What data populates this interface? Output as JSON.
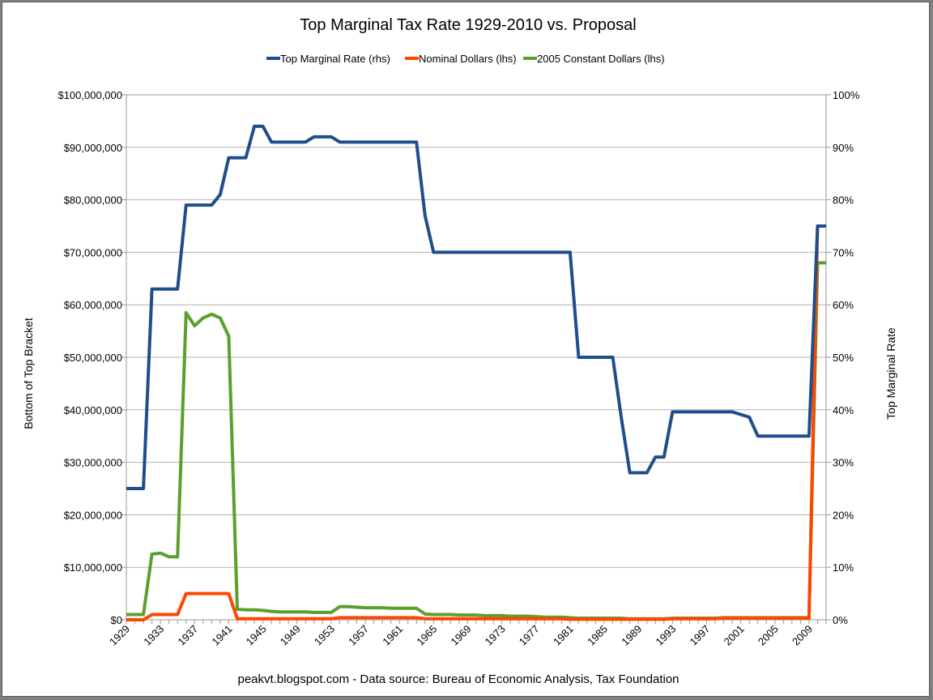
{
  "chart_data": {
    "type": "line",
    "title": "Top Marginal Tax Rate 1929-2010 vs. Proposal",
    "ylabel_left": "Bottom of Top Bracket",
    "ylabel_right": "Top Marginal Rate",
    "source_note": "peakvt.blogspot.com - Data source: Bureau of Economic Analysis, Tax Foundation",
    "legend_position": "top-center",
    "grid": true,
    "xlim": [
      1929,
      2011
    ],
    "ylim_left": [
      0,
      100000000
    ],
    "ylim_right": [
      0,
      100
    ],
    "x_tick_labels": [
      "1929",
      "1933",
      "1937",
      "1941",
      "1945",
      "1949",
      "1953",
      "1957",
      "1961",
      "1965",
      "1969",
      "1973",
      "1977",
      "1981",
      "1985",
      "1989",
      "1993",
      "1997",
      "2001",
      "2005",
      "2009"
    ],
    "y_left_tick_labels": [
      "$0",
      "$10,000,000",
      "$20,000,000",
      "$30,000,000",
      "$40,000,000",
      "$50,000,000",
      "$60,000,000",
      "$70,000,000",
      "$80,000,000",
      "$90,000,000",
      "$100,000,000"
    ],
    "y_right_tick_labels": [
      "0%",
      "10%",
      "20%",
      "30%",
      "40%",
      "50%",
      "60%",
      "70%",
      "80%",
      "90%",
      "100%"
    ],
    "series": [
      {
        "name": "Top Marginal Rate (rhs)",
        "axis": "right",
        "color": "#1f4e8c",
        "points": [
          [
            1929,
            25
          ],
          [
            1930,
            25
          ],
          [
            1931,
            25
          ],
          [
            1932,
            63
          ],
          [
            1933,
            63
          ],
          [
            1934,
            63
          ],
          [
            1935,
            63
          ],
          [
            1936,
            79
          ],
          [
            1937,
            79
          ],
          [
            1938,
            79
          ],
          [
            1939,
            79
          ],
          [
            1940,
            81
          ],
          [
            1941,
            88
          ],
          [
            1942,
            88
          ],
          [
            1943,
            88
          ],
          [
            1944,
            94
          ],
          [
            1945,
            94
          ],
          [
            1946,
            91
          ],
          [
            1947,
            91
          ],
          [
            1948,
            91
          ],
          [
            1949,
            91
          ],
          [
            1950,
            91
          ],
          [
            1951,
            92
          ],
          [
            1952,
            92
          ],
          [
            1953,
            92
          ],
          [
            1954,
            91
          ],
          [
            1955,
            91
          ],
          [
            1956,
            91
          ],
          [
            1957,
            91
          ],
          [
            1958,
            91
          ],
          [
            1959,
            91
          ],
          [
            1960,
            91
          ],
          [
            1961,
            91
          ],
          [
            1962,
            91
          ],
          [
            1963,
            91
          ],
          [
            1964,
            77
          ],
          [
            1965,
            70
          ],
          [
            1966,
            70
          ],
          [
            1967,
            70
          ],
          [
            1968,
            70
          ],
          [
            1969,
            70
          ],
          [
            1970,
            70
          ],
          [
            1971,
            70
          ],
          [
            1972,
            70
          ],
          [
            1973,
            70
          ],
          [
            1974,
            70
          ],
          [
            1975,
            70
          ],
          [
            1976,
            70
          ],
          [
            1977,
            70
          ],
          [
            1978,
            70
          ],
          [
            1979,
            70
          ],
          [
            1980,
            70
          ],
          [
            1981,
            70
          ],
          [
            1982,
            50
          ],
          [
            1983,
            50
          ],
          [
            1984,
            50
          ],
          [
            1985,
            50
          ],
          [
            1986,
            50
          ],
          [
            1987,
            38.5
          ],
          [
            1988,
            28
          ],
          [
            1989,
            28
          ],
          [
            1990,
            28
          ],
          [
            1991,
            31
          ],
          [
            1992,
            31
          ],
          [
            1993,
            39.6
          ],
          [
            1994,
            39.6
          ],
          [
            1995,
            39.6
          ],
          [
            1996,
            39.6
          ],
          [
            1997,
            39.6
          ],
          [
            1998,
            39.6
          ],
          [
            1999,
            39.6
          ],
          [
            2000,
            39.6
          ],
          [
            2001,
            39.1
          ],
          [
            2002,
            38.6
          ],
          [
            2003,
            35
          ],
          [
            2004,
            35
          ],
          [
            2005,
            35
          ],
          [
            2006,
            35
          ],
          [
            2007,
            35
          ],
          [
            2008,
            35
          ],
          [
            2009,
            35
          ],
          [
            2010,
            75
          ],
          [
            2011,
            75
          ]
        ]
      },
      {
        "name": "Nominal Dollars (lhs)",
        "axis": "left",
        "color": "#ff4500",
        "points": [
          [
            1929,
            0
          ],
          [
            1930,
            0
          ],
          [
            1931,
            0
          ],
          [
            1932,
            1000000
          ],
          [
            1933,
            1000000
          ],
          [
            1934,
            1000000
          ],
          [
            1935,
            1000000
          ],
          [
            1936,
            5000000
          ],
          [
            1937,
            5000000
          ],
          [
            1938,
            5000000
          ],
          [
            1939,
            5000000
          ],
          [
            1940,
            5000000
          ],
          [
            1941,
            5000000
          ],
          [
            1942,
            200000
          ],
          [
            1943,
            200000
          ],
          [
            1944,
            200000
          ],
          [
            1945,
            200000
          ],
          [
            1946,
            200000
          ],
          [
            1947,
            200000
          ],
          [
            1948,
            200000
          ],
          [
            1949,
            200000
          ],
          [
            1950,
            200000
          ],
          [
            1951,
            200000
          ],
          [
            1952,
            200000
          ],
          [
            1953,
            200000
          ],
          [
            1954,
            400000
          ],
          [
            1955,
            400000
          ],
          [
            1956,
            400000
          ],
          [
            1957,
            400000
          ],
          [
            1958,
            400000
          ],
          [
            1959,
            400000
          ],
          [
            1960,
            400000
          ],
          [
            1961,
            400000
          ],
          [
            1962,
            400000
          ],
          [
            1963,
            400000
          ],
          [
            1964,
            200000
          ],
          [
            1965,
            200000
          ],
          [
            1966,
            200000
          ],
          [
            1967,
            200000
          ],
          [
            1968,
            200000
          ],
          [
            1969,
            200000
          ],
          [
            1970,
            200000
          ],
          [
            1971,
            200000
          ],
          [
            1972,
            200000
          ],
          [
            1973,
            200000
          ],
          [
            1974,
            200000
          ],
          [
            1975,
            200000
          ],
          [
            1976,
            200000
          ],
          [
            1977,
            200000
          ],
          [
            1978,
            200000
          ],
          [
            1979,
            200000
          ],
          [
            1980,
            200000
          ],
          [
            1981,
            100000
          ],
          [
            1982,
            100000
          ],
          [
            1983,
            100000
          ],
          [
            1984,
            100000
          ],
          [
            1985,
            100000
          ],
          [
            1986,
            100000
          ],
          [
            1987,
            100000
          ],
          [
            1988,
            100000
          ],
          [
            1989,
            100000
          ],
          [
            1990,
            100000
          ],
          [
            1991,
            100000
          ],
          [
            1992,
            100000
          ],
          [
            1993,
            200000
          ],
          [
            1994,
            200000
          ],
          [
            1995,
            200000
          ],
          [
            1996,
            200000
          ],
          [
            1997,
            200000
          ],
          [
            1998,
            200000
          ],
          [
            1999,
            300000
          ],
          [
            2000,
            300000
          ],
          [
            2001,
            300000
          ],
          [
            2002,
            300000
          ],
          [
            2003,
            300000
          ],
          [
            2004,
            300000
          ],
          [
            2005,
            300000
          ],
          [
            2006,
            300000
          ],
          [
            2007,
            300000
          ],
          [
            2008,
            300000
          ],
          [
            2009,
            300000
          ],
          [
            2010,
            75000000
          ],
          [
            2011,
            75000000
          ]
        ]
      },
      {
        "name": "2005 Constant Dollars (lhs)",
        "axis": "left",
        "color": "#5aa02c",
        "points": [
          [
            1929,
            1000000
          ],
          [
            1930,
            1000000
          ],
          [
            1931,
            1000000
          ],
          [
            1932,
            12500000
          ],
          [
            1933,
            12700000
          ],
          [
            1934,
            12000000
          ],
          [
            1935,
            12000000
          ],
          [
            1936,
            58500000
          ],
          [
            1937,
            56000000
          ],
          [
            1938,
            57500000
          ],
          [
            1939,
            58200000
          ],
          [
            1940,
            57500000
          ],
          [
            1941,
            54000000
          ],
          [
            1942,
            2000000
          ],
          [
            1943,
            1900000
          ],
          [
            1944,
            1900000
          ],
          [
            1945,
            1800000
          ],
          [
            1946,
            1600000
          ],
          [
            1947,
            1500000
          ],
          [
            1948,
            1500000
          ],
          [
            1949,
            1500000
          ],
          [
            1950,
            1500000
          ],
          [
            1951,
            1400000
          ],
          [
            1952,
            1400000
          ],
          [
            1953,
            1400000
          ],
          [
            1954,
            2500000
          ],
          [
            1955,
            2500000
          ],
          [
            1956,
            2400000
          ],
          [
            1957,
            2300000
          ],
          [
            1958,
            2300000
          ],
          [
            1959,
            2300000
          ],
          [
            1960,
            2200000
          ],
          [
            1961,
            2200000
          ],
          [
            1962,
            2200000
          ],
          [
            1963,
            2200000
          ],
          [
            1964,
            1100000
          ],
          [
            1965,
            1000000
          ],
          [
            1966,
            1000000
          ],
          [
            1967,
            1000000
          ],
          [
            1968,
            900000
          ],
          [
            1969,
            900000
          ],
          [
            1970,
            900000
          ],
          [
            1971,
            800000
          ],
          [
            1972,
            800000
          ],
          [
            1973,
            800000
          ],
          [
            1974,
            700000
          ],
          [
            1975,
            700000
          ],
          [
            1976,
            700000
          ],
          [
            1977,
            600000
          ],
          [
            1978,
            500000
          ],
          [
            1979,
            500000
          ],
          [
            1980,
            500000
          ],
          [
            1981,
            400000
          ],
          [
            1982,
            300000
          ],
          [
            1983,
            300000
          ],
          [
            1984,
            300000
          ],
          [
            1985,
            300000
          ],
          [
            1986,
            300000
          ],
          [
            1987,
            300000
          ],
          [
            1988,
            200000
          ],
          [
            1989,
            200000
          ],
          [
            1990,
            200000
          ],
          [
            1991,
            200000
          ],
          [
            1992,
            200000
          ],
          [
            1993,
            300000
          ],
          [
            1994,
            300000
          ],
          [
            1995,
            300000
          ],
          [
            1996,
            300000
          ],
          [
            1997,
            300000
          ],
          [
            1998,
            300000
          ],
          [
            1999,
            400000
          ],
          [
            2000,
            400000
          ],
          [
            2001,
            400000
          ],
          [
            2002,
            400000
          ],
          [
            2003,
            400000
          ],
          [
            2004,
            400000
          ],
          [
            2005,
            400000
          ],
          [
            2006,
            400000
          ],
          [
            2007,
            400000
          ],
          [
            2008,
            400000
          ],
          [
            2009,
            400000
          ],
          [
            2010,
            68000000
          ],
          [
            2011,
            68000000
          ]
        ]
      }
    ]
  }
}
